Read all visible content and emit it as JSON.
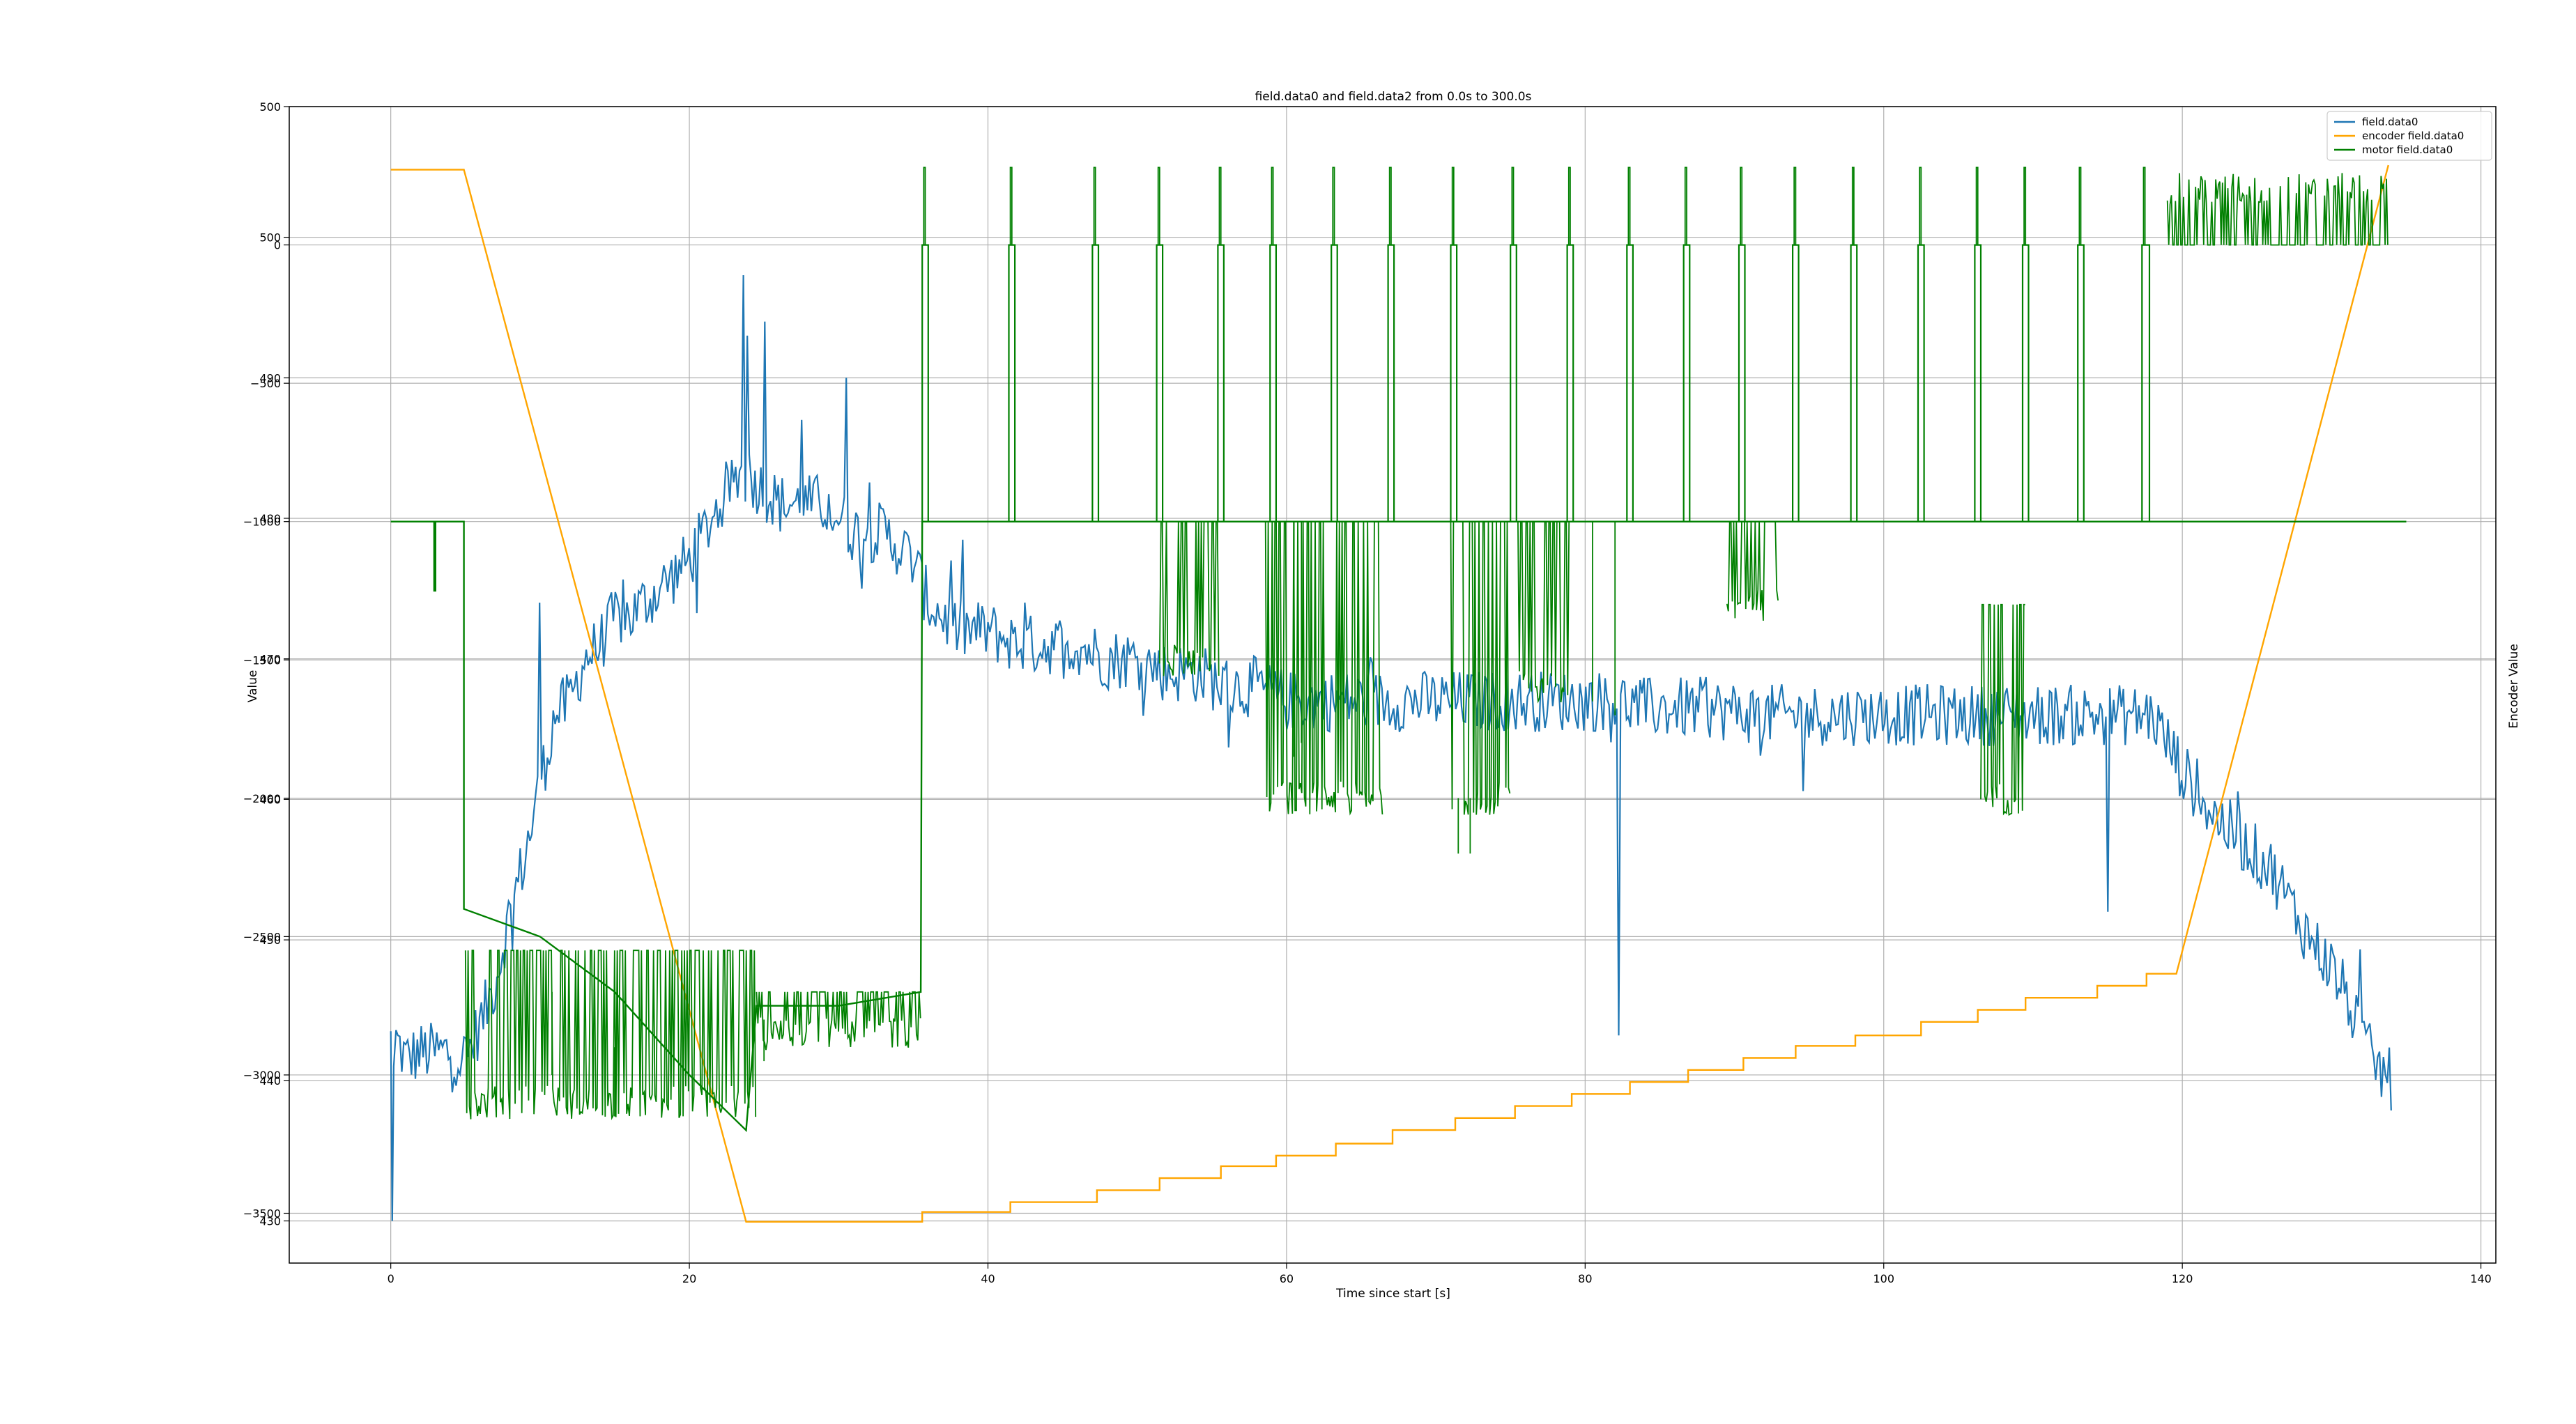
{
  "chart_data": {
    "type": "line",
    "title": "field.data0 and field.data2 from 0.0s to 300.0s",
    "xlabel": "Time since start [s]",
    "ylabel_left": "Value",
    "ylabel_right": "Encoder Value",
    "xlim": [
      -6.8,
      141
    ],
    "x_ticks": [
      0,
      20,
      40,
      60,
      80,
      100,
      120,
      140
    ],
    "grid": true,
    "legend_position": "top-right",
    "axes": [
      {
        "name": "field axis",
        "ylim": [
          427.0,
          509.3
        ],
        "ticks": [
          430,
          440,
          450,
          460,
          470,
          480,
          490,
          500
        ]
      },
      {
        "name": "motor axis",
        "ylim": [
          -3680,
          500
        ],
        "ticks": [
          -3500,
          -3000,
          -2500,
          -2000,
          -1500,
          -1000,
          -500,
          0,
          500
        ]
      },
      {
        "name": "encoder axis",
        "ylim": [
          -2.75,
          74.2
        ],
        "ticks": []
      }
    ],
    "series": [
      {
        "name": "field.data0",
        "color": "#1f77b4",
        "axis": 0,
        "noise": 1.3,
        "points": [
          [
            0.0,
            443.5
          ],
          [
            0.1,
            430
          ],
          [
            0.2,
            441
          ],
          [
            0.3,
            443
          ],
          [
            1,
            441.5
          ],
          [
            2,
            442
          ],
          [
            3,
            442
          ],
          [
            4,
            442
          ],
          [
            5,
            441.5
          ],
          [
            6,
            444
          ],
          [
            7,
            447
          ],
          [
            8,
            452
          ],
          [
            9,
            456
          ],
          [
            10,
            461
          ],
          [
            11,
            466
          ],
          [
            12,
            467
          ],
          [
            13,
            470
          ],
          [
            14,
            471
          ],
          [
            15,
            473
          ],
          [
            16,
            473
          ],
          [
            17,
            474
          ],
          [
            18,
            475
          ],
          [
            19,
            476
          ],
          [
            20,
            477
          ],
          [
            21,
            479
          ],
          [
            22,
            481
          ],
          [
            23,
            483
          ],
          [
            24,
            483
          ],
          [
            25,
            482
          ],
          [
            26,
            481
          ],
          [
            27,
            481
          ],
          [
            28,
            481
          ],
          [
            29,
            481
          ],
          [
            30,
            480
          ],
          [
            31,
            479
          ],
          [
            32,
            479
          ],
          [
            33,
            479
          ],
          [
            34,
            478
          ],
          [
            35,
            477
          ],
          [
            36,
            474
          ],
          [
            37,
            473
          ],
          [
            38,
            472
          ],
          [
            40,
            472
          ],
          [
            42,
            471
          ],
          [
            44,
            471
          ],
          [
            46,
            471
          ],
          [
            48,
            470
          ],
          [
            50,
            470
          ],
          [
            52,
            469
          ],
          [
            54,
            469
          ],
          [
            56,
            468
          ],
          [
            58,
            468
          ],
          [
            60,
            467
          ],
          [
            62,
            467
          ],
          [
            64,
            467
          ],
          [
            66,
            467
          ],
          [
            70,
            467
          ],
          [
            74,
            467
          ],
          [
            78,
            467
          ],
          [
            80,
            467
          ],
          [
            82,
            467
          ],
          [
            84,
            466.5
          ],
          [
            88,
            466.5
          ],
          [
            92,
            466
          ],
          [
            96,
            466
          ],
          [
            100,
            466
          ],
          [
            104,
            466
          ],
          [
            108,
            466
          ],
          [
            112,
            466
          ],
          [
            116,
            466
          ],
          [
            118,
            466
          ],
          [
            119,
            464
          ],
          [
            120,
            462
          ],
          [
            122,
            459
          ],
          [
            124,
            457
          ],
          [
            126,
            455
          ],
          [
            128,
            451
          ],
          [
            130,
            448
          ],
          [
            131,
            446
          ],
          [
            132,
            443
          ],
          [
            133,
            441
          ],
          [
            134,
            440
          ]
        ],
        "spikes": [
          [
            23.6,
            497.3
          ],
          [
            23.9,
            493
          ],
          [
            25,
            494
          ],
          [
            27.5,
            487
          ],
          [
            30.5,
            490
          ],
          [
            10.0,
            474
          ],
          [
            82.2,
            443.2
          ],
          [
            115,
            452
          ],
          [
            31.5,
            475
          ],
          [
            37.5,
            477
          ],
          [
            42.5,
            474
          ]
        ]
      },
      {
        "name": "encoder field.data0",
        "color": "#ffa500",
        "axis": 2,
        "points": [
          [
            0,
            70.0
          ],
          [
            4.9,
            70.0
          ],
          [
            23.8,
            0.0
          ],
          [
            35.6,
            0.0
          ],
          [
            35.6,
            0.65
          ],
          [
            41.5,
            0.65
          ],
          [
            41.5,
            1.3
          ],
          [
            47.3,
            1.3
          ],
          [
            47.3,
            2.1
          ],
          [
            51.5,
            2.1
          ],
          [
            51.5,
            2.9
          ],
          [
            55.6,
            2.9
          ],
          [
            55.6,
            3.7
          ],
          [
            59.3,
            3.7
          ],
          [
            59.3,
            4.4
          ],
          [
            63.3,
            4.4
          ],
          [
            63.3,
            5.2
          ],
          [
            67.1,
            5.2
          ],
          [
            67.1,
            6.1
          ],
          [
            71.3,
            6.1
          ],
          [
            71.3,
            6.9
          ],
          [
            75.3,
            6.9
          ],
          [
            75.3,
            7.7
          ],
          [
            79.1,
            7.7
          ],
          [
            79.1,
            8.5
          ],
          [
            83.0,
            8.5
          ],
          [
            83.0,
            9.3
          ],
          [
            86.9,
            9.3
          ],
          [
            86.9,
            10.1
          ],
          [
            90.6,
            10.1
          ],
          [
            90.6,
            10.9
          ],
          [
            94.1,
            10.9
          ],
          [
            94.1,
            11.7
          ],
          [
            98.1,
            11.7
          ],
          [
            98.1,
            12.4
          ],
          [
            102.5,
            12.4
          ],
          [
            102.5,
            13.3
          ],
          [
            106.3,
            13.3
          ],
          [
            106.3,
            14.1
          ],
          [
            109.5,
            14.1
          ],
          [
            109.5,
            14.9
          ],
          [
            114.3,
            14.9
          ],
          [
            114.3,
            15.7
          ],
          [
            117.6,
            15.7
          ],
          [
            117.6,
            16.5
          ],
          [
            119.6,
            16.5
          ],
          [
            133.8,
            70.3
          ]
        ]
      },
      {
        "name": "motor field.data0",
        "color": "#008000",
        "axis": 1,
        "base": [
          [
            0,
            -1000
          ],
          [
            4.9,
            -1000
          ],
          [
            4.9,
            -2400
          ],
          [
            10,
            -2500
          ],
          [
            15,
            -2700
          ],
          [
            20,
            -3000
          ],
          [
            23.8,
            -3200
          ],
          [
            24.5,
            -2750
          ],
          [
            30,
            -2750
          ],
          [
            35.5,
            -2700
          ],
          [
            35.6,
            -1000
          ],
          [
            40,
            -1000
          ],
          [
            41.3,
            -1000
          ],
          [
            135,
            -1000
          ]
        ],
        "pulses": [
          [
            35.6,
            36.0
          ],
          [
            41.4,
            41.8
          ],
          [
            47.0,
            47.4
          ],
          [
            51.3,
            51.7
          ],
          [
            55.4,
            55.8
          ],
          [
            58.9,
            59.3
          ],
          [
            63.0,
            63.4
          ],
          [
            66.8,
            67.2
          ],
          [
            71.0,
            71.4
          ],
          [
            75.0,
            75.4
          ],
          [
            78.8,
            79.2
          ],
          [
            82.8,
            83.2
          ],
          [
            86.6,
            87.0
          ],
          [
            90.3,
            90.7
          ],
          [
            93.9,
            94.3
          ],
          [
            97.8,
            98.2
          ],
          [
            102.3,
            102.7
          ],
          [
            106.1,
            106.5
          ],
          [
            109.3,
            109.7
          ],
          [
            113.0,
            113.4
          ],
          [
            117.3,
            117.8
          ]
        ],
        "noise_regions": [
          [
            5.0,
            24.5,
            -2550,
            -3100
          ],
          [
            24.5,
            35.5,
            -2700,
            -2850
          ],
          [
            51.5,
            55.5,
            -1000,
            -1500
          ],
          [
            58.5,
            66.5,
            -1000,
            -2000
          ],
          [
            71.0,
            75.0,
            -1000,
            -2000
          ],
          [
            75.5,
            79.0,
            -1000,
            -1600
          ],
          [
            89.5,
            93.0,
            -1000,
            -1300
          ],
          [
            106.5,
            109.5,
            -1300,
            -2000
          ],
          [
            119.0,
            133.8,
            0,
            200
          ]
        ]
      }
    ]
  }
}
